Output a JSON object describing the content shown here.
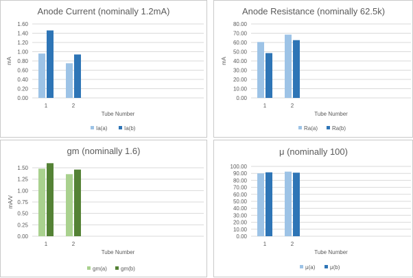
{
  "colors": {
    "blue_light": "#9dc3e6",
    "blue_dark": "#2e75b6",
    "green_light": "#a9d18e",
    "green_dark": "#548235",
    "grid": "#d9d9d9",
    "text": "#595959"
  },
  "chart_data": [
    {
      "type": "bar",
      "title": "Anode Current (nominally 1.2mA)",
      "xlabel": "Tube Number",
      "ylabel": "mA",
      "categories": [
        "1",
        "2"
      ],
      "ylim": [
        0,
        1.6
      ],
      "yticks": [
        "0.00",
        "0.20",
        "0.40",
        "0.60",
        "0.80",
        "1.00",
        "1.20",
        "1.40",
        "1.60"
      ],
      "series": [
        {
          "name": "Ia(a)",
          "values": [
            0.96,
            0.75
          ],
          "color": "#9dc3e6"
        },
        {
          "name": "Ia(b)",
          "values": [
            1.46,
            0.94
          ],
          "color": "#2e75b6"
        }
      ]
    },
    {
      "type": "bar",
      "title": "Anode Resistance (nominally 62.5k)",
      "xlabel": "Tube Number",
      "ylabel": "mA",
      "categories": [
        "1",
        "2"
      ],
      "ylim": [
        0,
        80
      ],
      "yticks": [
        "0.00",
        "10.00",
        "20.00",
        "30.00",
        "40.00",
        "50.00",
        "60.00",
        "70.00",
        "80.00"
      ],
      "series": [
        {
          "name": "Ra(a)",
          "values": [
            60.5,
            68.5
          ],
          "color": "#9dc3e6"
        },
        {
          "name": "Ra(b)",
          "values": [
            48.5,
            62.5
          ],
          "color": "#2e75b6"
        }
      ]
    },
    {
      "type": "bar",
      "title": "gm (nominally 1.6)",
      "xlabel": "Tube Number",
      "ylabel": "mA/V",
      "categories": [
        "1",
        "2"
      ],
      "ylim": [
        0,
        1.5
      ],
      "yticks": [
        "0.00",
        "0.25",
        "0.50",
        "0.75",
        "1.00",
        "1.25",
        "1.50"
      ],
      "series": [
        {
          "name": "gm(a)",
          "values": [
            1.48,
            1.36
          ],
          "color": "#a9d18e"
        },
        {
          "name": "gm(b)",
          "values": [
            1.6,
            1.46
          ],
          "color": "#548235"
        }
      ]
    },
    {
      "type": "bar",
      "title": "μ (nominally 100)",
      "xlabel": "Tube Number",
      "ylabel": "",
      "categories": [
        "1",
        "2"
      ],
      "ylim": [
        0,
        100
      ],
      "yticks": [
        "0.00",
        "10.00",
        "20.00",
        "30.00",
        "40.00",
        "50.00",
        "60.00",
        "70.00",
        "80.00",
        "90.00",
        "100.00"
      ],
      "series": [
        {
          "name": "μ(a)",
          "values": [
            90.0,
            92.5
          ],
          "color": "#9dc3e6"
        },
        {
          "name": "μ(b)",
          "values": [
            91.5,
            91.0
          ],
          "color": "#2e75b6"
        }
      ]
    }
  ]
}
